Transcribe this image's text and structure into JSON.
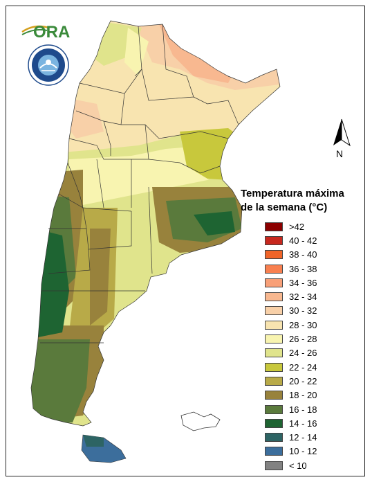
{
  "logo": {
    "ora_text": "ORA",
    "seal_label": "SERVICIO METEOROLÓGICO NACIONAL · ARGENTINA"
  },
  "north_arrow": {
    "label": "N"
  },
  "legend": {
    "title_line1": "Temperatura máxima",
    "title_line2": "de la semana (°C)",
    "items": [
      {
        "label": ">42",
        "color": "#8b0000"
      },
      {
        "label": "40 - 42",
        "color": "#c8281e"
      },
      {
        "label": "38 - 40",
        "color": "#f06428"
      },
      {
        "label": "36 - 38",
        "color": "#f88050"
      },
      {
        "label": "34 - 36",
        "color": "#f8a078"
      },
      {
        "label": "32 - 34",
        "color": "#f8b890"
      },
      {
        "label": "30 - 32",
        "color": "#f8d0a8"
      },
      {
        "label": "28 - 30",
        "color": "#f8e4b0"
      },
      {
        "label": "26 - 28",
        "color": "#f8f4b0"
      },
      {
        "label": "24 - 26",
        "color": "#e0e48c"
      },
      {
        "label": "22 - 24",
        "color": "#c8c83c"
      },
      {
        "label": "20 - 22",
        "color": "#b8aa48"
      },
      {
        "label": "18 - 20",
        "color": "#98823c"
      },
      {
        "label": "16 - 18",
        "color": "#5a7a3c"
      },
      {
        "label": "14 - 16",
        "color": "#1e6432"
      },
      {
        "label": "12 - 14",
        "color": "#2d6464"
      },
      {
        "label": "10 - 12",
        "color": "#3c6e9c"
      },
      {
        "label": "< 10",
        "color": "#828282"
      }
    ]
  }
}
